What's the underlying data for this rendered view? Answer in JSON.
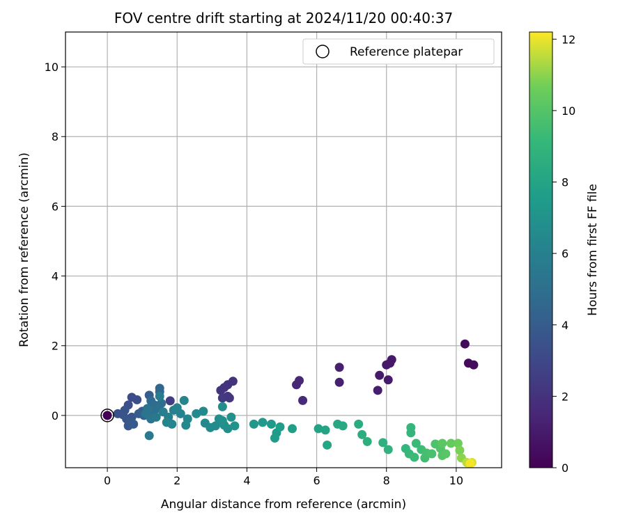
{
  "chart_data": {
    "type": "scatter",
    "title": "FOV centre drift starting at 2024/11/20 00:40:37",
    "xlabel": "Angular distance from reference (arcmin)",
    "ylabel": "Rotation from reference (arcmin)",
    "xlim": [
      -1.2,
      11.3
    ],
    "ylim": [
      -1.5,
      11.0
    ],
    "xticks": [
      0,
      2,
      4,
      6,
      8,
      10
    ],
    "yticks": [
      0,
      2,
      4,
      6,
      8,
      10
    ],
    "grid": true,
    "legend": {
      "position": "top-right",
      "entries": [
        "Reference platepar"
      ]
    },
    "reference_point": {
      "x": 0,
      "y": 0,
      "label": "Reference platepar",
      "marker": "open-circle"
    },
    "colorbar": {
      "label": "Hours from first FF file",
      "colormap": "viridis",
      "range": [
        0,
        12.2
      ],
      "ticks": [
        0,
        2,
        4,
        6,
        8,
        10,
        12
      ]
    },
    "points": [
      {
        "x": 0.0,
        "y": 0.0,
        "h": 0.0
      },
      {
        "x": 10.25,
        "y": 2.05,
        "h": 0.3
      },
      {
        "x": 10.35,
        "y": 1.5,
        "h": 0.4
      },
      {
        "x": 10.5,
        "y": 1.45,
        "h": 0.4
      },
      {
        "x": 8.15,
        "y": 1.6,
        "h": 0.9
      },
      {
        "x": 8.1,
        "y": 1.5,
        "h": 0.9
      },
      {
        "x": 8.0,
        "y": 1.45,
        "h": 0.9
      },
      {
        "x": 7.8,
        "y": 1.15,
        "h": 1.0
      },
      {
        "x": 8.05,
        "y": 1.02,
        "h": 1.0
      },
      {
        "x": 7.75,
        "y": 0.72,
        "h": 1.1
      },
      {
        "x": 6.65,
        "y": 1.38,
        "h": 1.2
      },
      {
        "x": 6.65,
        "y": 0.95,
        "h": 1.2
      },
      {
        "x": 5.5,
        "y": 1.0,
        "h": 1.5
      },
      {
        "x": 5.42,
        "y": 0.88,
        "h": 1.5
      },
      {
        "x": 5.6,
        "y": 0.43,
        "h": 1.6
      },
      {
        "x": 3.6,
        "y": 0.98,
        "h": 2.0
      },
      {
        "x": 3.45,
        "y": 0.88,
        "h": 2.0
      },
      {
        "x": 3.35,
        "y": 0.8,
        "h": 2.1
      },
      {
        "x": 3.25,
        "y": 0.72,
        "h": 2.1
      },
      {
        "x": 3.45,
        "y": 0.55,
        "h": 2.2
      },
      {
        "x": 3.3,
        "y": 0.5,
        "h": 2.3
      },
      {
        "x": 3.5,
        "y": 0.5,
        "h": 2.2
      },
      {
        "x": 1.8,
        "y": 0.42,
        "h": 2.5
      },
      {
        "x": 0.7,
        "y": 0.52,
        "h": 3.2
      },
      {
        "x": 0.85,
        "y": 0.45,
        "h": 3.3
      },
      {
        "x": 0.6,
        "y": 0.3,
        "h": 3.4
      },
      {
        "x": 0.5,
        "y": 0.15,
        "h": 3.5
      },
      {
        "x": 0.3,
        "y": 0.05,
        "h": 3.5
      },
      {
        "x": 0.45,
        "y": 0.02,
        "h": 3.6
      },
      {
        "x": 0.55,
        "y": -0.1,
        "h": 3.6
      },
      {
        "x": 0.7,
        "y": -0.05,
        "h": 3.7
      },
      {
        "x": 0.65,
        "y": -0.2,
        "h": 3.8
      },
      {
        "x": 0.6,
        "y": -0.3,
        "h": 3.8
      },
      {
        "x": 0.75,
        "y": -0.25,
        "h": 3.9
      },
      {
        "x": 0.9,
        "y": 0.05,
        "h": 4.0
      },
      {
        "x": 1.0,
        "y": 0.12,
        "h": 4.1
      },
      {
        "x": 1.05,
        "y": 0.0,
        "h": 4.2
      },
      {
        "x": 1.2,
        "y": 0.58,
        "h": 4.1
      },
      {
        "x": 1.5,
        "y": 0.78,
        "h": 4.5
      },
      {
        "x": 1.5,
        "y": 0.68,
        "h": 4.6
      },
      {
        "x": 1.25,
        "y": 0.42,
        "h": 4.7
      },
      {
        "x": 1.35,
        "y": 0.3,
        "h": 4.8
      },
      {
        "x": 1.55,
        "y": 0.35,
        "h": 4.9
      },
      {
        "x": 1.45,
        "y": 0.2,
        "h": 5.0
      },
      {
        "x": 1.3,
        "y": 0.1,
        "h": 5.0
      },
      {
        "x": 1.15,
        "y": 0.2,
        "h": 5.2
      },
      {
        "x": 1.1,
        "y": 0.05,
        "h": 5.3
      },
      {
        "x": 1.25,
        "y": -0.1,
        "h": 5.4
      },
      {
        "x": 1.4,
        "y": -0.05,
        "h": 5.5
      },
      {
        "x": 1.2,
        "y": -0.58,
        "h": 5.6
      },
      {
        "x": 1.5,
        "y": 0.55,
        "h": 5.7
      },
      {
        "x": 1.6,
        "y": 0.1,
        "h": 5.8
      },
      {
        "x": 1.75,
        "y": -0.05,
        "h": 5.9
      },
      {
        "x": 1.9,
        "y": 0.15,
        "h": 6.0
      },
      {
        "x": 2.0,
        "y": 0.22,
        "h": 6.1
      },
      {
        "x": 2.2,
        "y": 0.43,
        "h": 6.2
      },
      {
        "x": 2.1,
        "y": 0.05,
        "h": 6.1
      },
      {
        "x": 1.7,
        "y": -0.2,
        "h": 6.2
      },
      {
        "x": 1.85,
        "y": -0.25,
        "h": 6.3
      },
      {
        "x": 2.3,
        "y": -0.1,
        "h": 6.3
      },
      {
        "x": 2.25,
        "y": -0.28,
        "h": 6.4
      },
      {
        "x": 2.55,
        "y": 0.05,
        "h": 6.4
      },
      {
        "x": 2.75,
        "y": 0.12,
        "h": 6.5
      },
      {
        "x": 2.8,
        "y": -0.22,
        "h": 6.5
      },
      {
        "x": 2.95,
        "y": -0.35,
        "h": 6.6
      },
      {
        "x": 3.1,
        "y": -0.3,
        "h": 6.6
      },
      {
        "x": 3.2,
        "y": -0.1,
        "h": 6.7
      },
      {
        "x": 3.3,
        "y": 0.25,
        "h": 6.7
      },
      {
        "x": 3.35,
        "y": -0.28,
        "h": 6.8
      },
      {
        "x": 3.45,
        "y": -0.38,
        "h": 6.8
      },
      {
        "x": 3.55,
        "y": -0.05,
        "h": 6.9
      },
      {
        "x": 3.65,
        "y": -0.3,
        "h": 7.0
      },
      {
        "x": 3.3,
        "y": -0.15,
        "h": 6.9
      },
      {
        "x": 4.2,
        "y": -0.25,
        "h": 7.2
      },
      {
        "x": 4.45,
        "y": -0.2,
        "h": 7.3
      },
      {
        "x": 4.7,
        "y": -0.25,
        "h": 7.3
      },
      {
        "x": 4.85,
        "y": -0.5,
        "h": 7.4
      },
      {
        "x": 4.8,
        "y": -0.65,
        "h": 7.5
      },
      {
        "x": 4.95,
        "y": -0.33,
        "h": 7.6
      },
      {
        "x": 5.3,
        "y": -0.38,
        "h": 7.7
      },
      {
        "x": 6.05,
        "y": -0.38,
        "h": 7.9
      },
      {
        "x": 6.25,
        "y": -0.42,
        "h": 8.0
      },
      {
        "x": 6.3,
        "y": -0.85,
        "h": 8.1
      },
      {
        "x": 6.6,
        "y": -0.25,
        "h": 8.2
      },
      {
        "x": 6.75,
        "y": -0.3,
        "h": 8.3
      },
      {
        "x": 7.2,
        "y": -0.25,
        "h": 8.4
      },
      {
        "x": 7.3,
        "y": -0.55,
        "h": 8.5
      },
      {
        "x": 7.45,
        "y": -0.75,
        "h": 8.6
      },
      {
        "x": 7.9,
        "y": -0.78,
        "h": 8.7
      },
      {
        "x": 8.05,
        "y": -0.98,
        "h": 8.8
      },
      {
        "x": 8.55,
        "y": -0.95,
        "h": 9.0
      },
      {
        "x": 8.7,
        "y": -0.35,
        "h": 9.1
      },
      {
        "x": 8.7,
        "y": -0.5,
        "h": 9.1
      },
      {
        "x": 8.65,
        "y": -1.1,
        "h": 9.2
      },
      {
        "x": 8.8,
        "y": -1.2,
        "h": 9.3
      },
      {
        "x": 8.85,
        "y": -0.8,
        "h": 9.3
      },
      {
        "x": 9.0,
        "y": -0.98,
        "h": 9.4
      },
      {
        "x": 9.1,
        "y": -1.22,
        "h": 9.5
      },
      {
        "x": 9.15,
        "y": -1.08,
        "h": 9.6
      },
      {
        "x": 9.3,
        "y": -1.1,
        "h": 9.7
      },
      {
        "x": 9.4,
        "y": -0.82,
        "h": 9.8
      },
      {
        "x": 9.55,
        "y": -0.95,
        "h": 9.9
      },
      {
        "x": 9.6,
        "y": -1.15,
        "h": 10.0
      },
      {
        "x": 9.7,
        "y": -1.1,
        "h": 10.1
      },
      {
        "x": 9.6,
        "y": -0.8,
        "h": 10.2
      },
      {
        "x": 9.85,
        "y": -0.8,
        "h": 10.4
      },
      {
        "x": 10.05,
        "y": -0.8,
        "h": 10.6
      },
      {
        "x": 10.1,
        "y": -1.0,
        "h": 10.8
      },
      {
        "x": 10.15,
        "y": -1.22,
        "h": 11.0
      },
      {
        "x": 10.3,
        "y": -1.35,
        "h": 11.5
      },
      {
        "x": 10.45,
        "y": -1.35,
        "h": 11.8
      },
      {
        "x": 10.4,
        "y": -1.38,
        "h": 12.1
      }
    ]
  }
}
